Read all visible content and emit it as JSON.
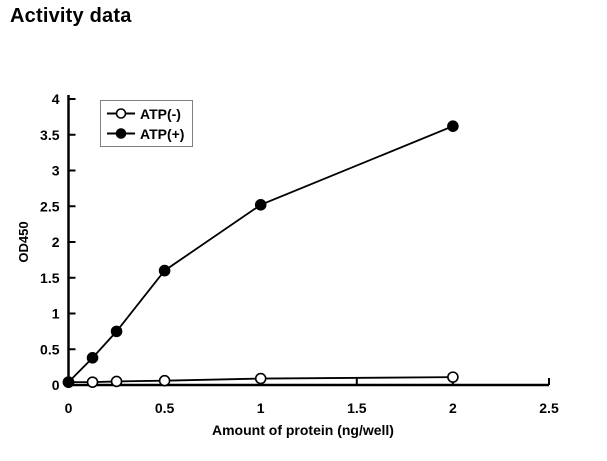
{
  "title": "Activity data",
  "chart_data": {
    "type": "line",
    "title": "Activity data",
    "xlabel": "Amount of protein (ng/well)",
    "ylabel": "OD450",
    "x": [
      0,
      0.125,
      0.25,
      0.5,
      1,
      2
    ],
    "series": [
      {
        "name": "ATP(-)",
        "marker": "open-circle",
        "color": "#000000",
        "values": [
          0.04,
          0.04,
          0.05,
          0.06,
          0.09,
          0.11
        ]
      },
      {
        "name": "ATP(+)",
        "marker": "filled-circle",
        "color": "#000000",
        "values": [
          0.04,
          0.38,
          0.75,
          1.6,
          2.52,
          3.62
        ]
      }
    ],
    "xlim": [
      0,
      2.5
    ],
    "ylim": [
      0,
      4
    ],
    "x_ticks": [
      0,
      0.5,
      1,
      1.5,
      2,
      2.5
    ],
    "x_tick_labels": [
      "0",
      "0.5",
      "1",
      "1.5",
      "2",
      "2.5"
    ],
    "y_ticks": [
      0,
      0.5,
      1,
      1.5,
      2,
      2.5,
      3,
      3.5,
      4
    ],
    "y_tick_labels": [
      "0",
      "0.5",
      "1",
      "1.5",
      "2",
      "2.5",
      "3",
      "3.5",
      "4"
    ],
    "grid": false,
    "legend_position": "top-left-inside",
    "background": "#ffffff",
    "axis_color": "#000000",
    "marker_fill_open": "#ffffff",
    "marker_fill_filled": "#000000"
  }
}
